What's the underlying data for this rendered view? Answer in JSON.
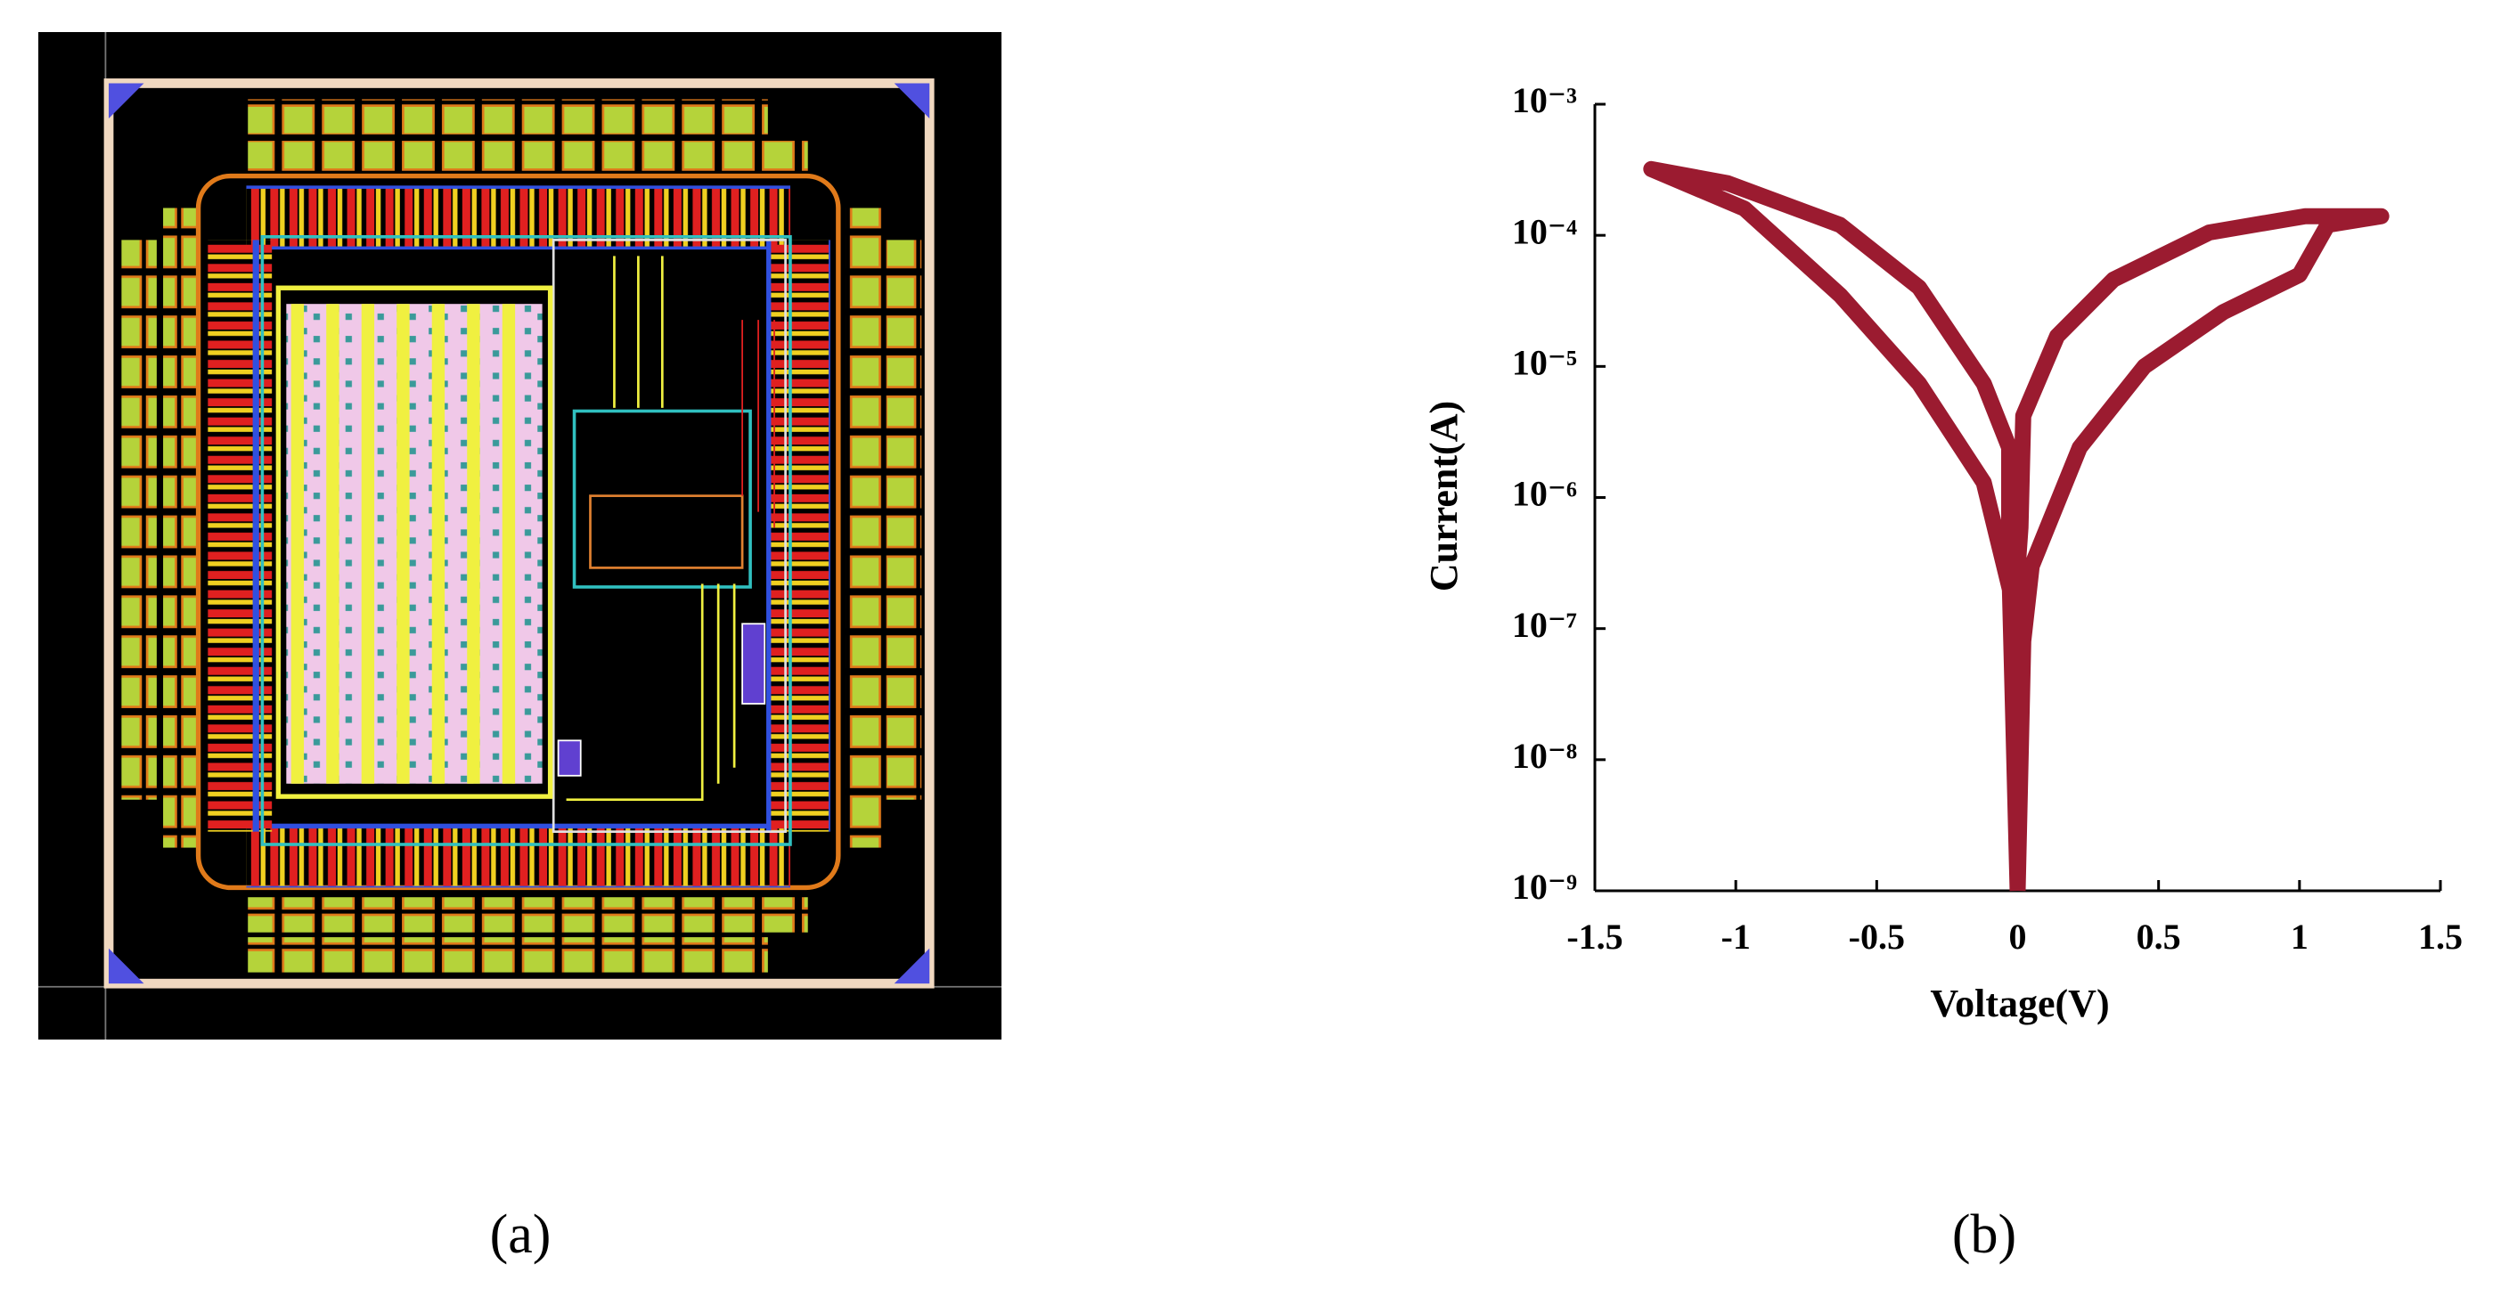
{
  "captions": [
    "(a)",
    "(b)"
  ],
  "chart_data": {
    "type": "line",
    "x_label": "Voltage(V)",
    "y_label": "Current(A)",
    "y_scale": "log",
    "color": "#9b1b30",
    "xlim": [
      -1.5,
      1.5
    ],
    "xticks": [
      -1.5,
      -1,
      -0.5,
      0,
      0.5,
      1,
      1.5
    ],
    "ylim": [
      1e-09,
      0.001
    ],
    "yticks": [
      {
        "value": 1e-09,
        "label": "10⁻⁹"
      },
      {
        "value": 1e-08,
        "label": "10⁻⁸"
      },
      {
        "value": 1e-07,
        "label": "10⁻⁷"
      },
      {
        "value": 1e-06,
        "label": "10⁻⁶"
      },
      {
        "value": 1e-05,
        "label": "10⁻⁵"
      },
      {
        "value": 0.0001,
        "label": "10⁻⁴"
      },
      {
        "value": 0.001,
        "label": "10⁻³"
      }
    ],
    "x": [
      0,
      0.02,
      0.05,
      0.22,
      0.45,
      0.73,
      1.0,
      1.1,
      1.29,
      1.02,
      0.68,
      0.34,
      0.14,
      0.02,
      0.01,
      -0.01,
      -0.12,
      -0.35,
      -0.63,
      -0.97,
      -1.3,
      -1.03,
      -0.63,
      -0.35,
      -0.12,
      -0.03,
      -0.03,
      0
    ],
    "values": [
      1e-09,
      8e-08,
      3e-07,
      2.4e-06,
      1e-05,
      2.6e-05,
      5e-05,
      0.00012,
      0.00014,
      0.00014,
      0.000105,
      4.6e-05,
      1.7e-05,
      4.2e-06,
      5.9e-07,
      1.4e-07,
      1.3e-06,
      7.4e-06,
      3.5e-05,
      0.00016,
      0.00032,
      0.00025,
      0.00012,
      4e-05,
      7.4e-06,
      2.4e-06,
      3.3e-07,
      1e-09
    ]
  }
}
